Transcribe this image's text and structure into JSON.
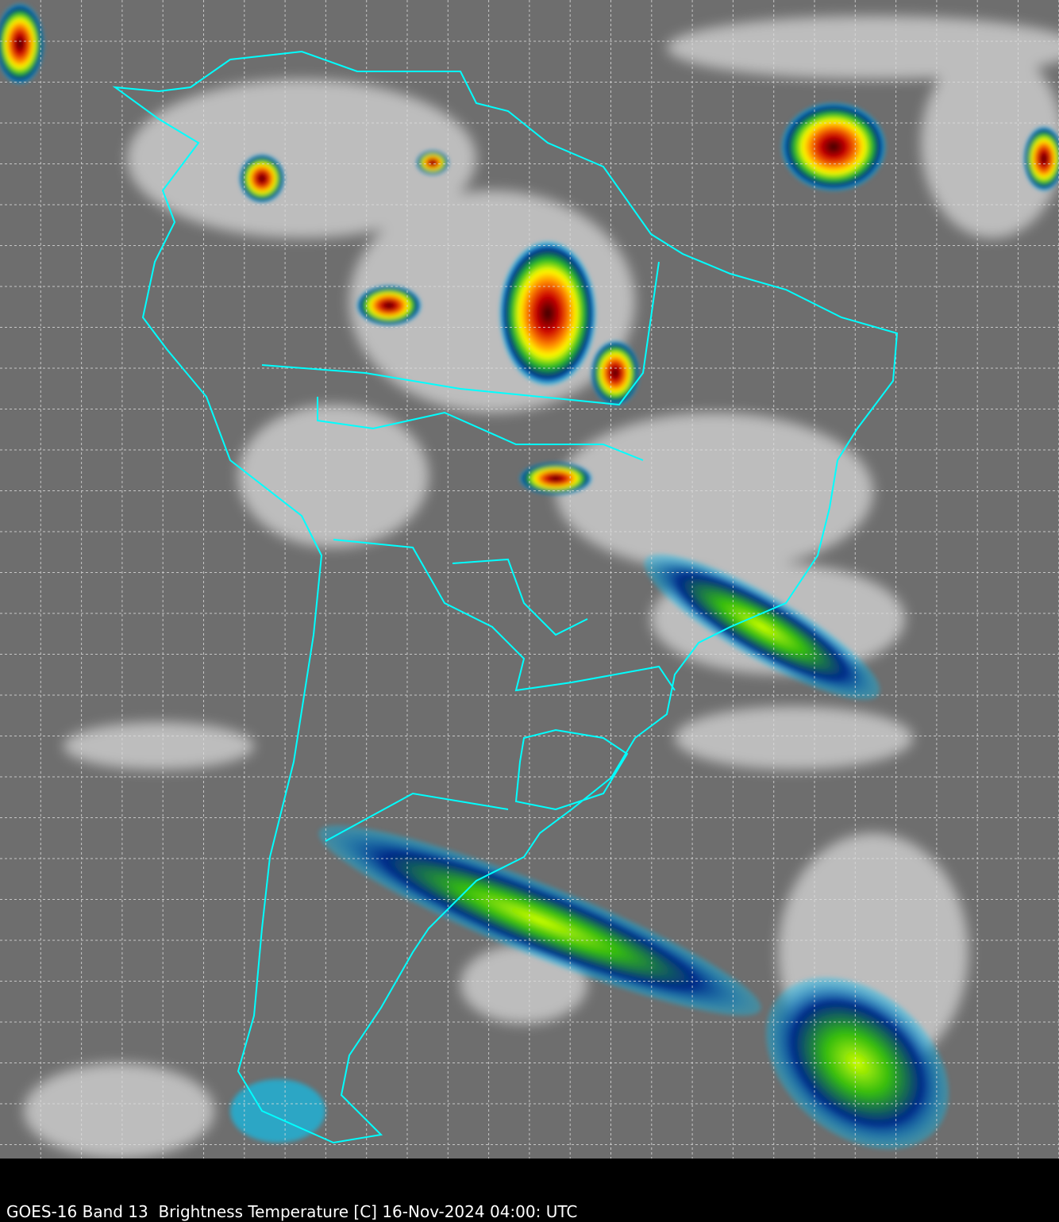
{
  "caption": "GOES-16 Band 13  Brightness Temperature [C] 16-Nov-2024 04:00: UTC",
  "map": {
    "type": "satellite infrared image",
    "region": "South America",
    "background_color": "#6e6e6e",
    "border_color": "#00ffff",
    "grid": "dashed lat/lon graticule",
    "grid_color": "#dddddd",
    "colormap": [
      "#ffffff",
      "#00ccff",
      "#002288",
      "#00aa00",
      "#aaff00",
      "#ffff00",
      "#ff6600",
      "#cc0000",
      "#330000",
      "#ffaacc"
    ]
  }
}
